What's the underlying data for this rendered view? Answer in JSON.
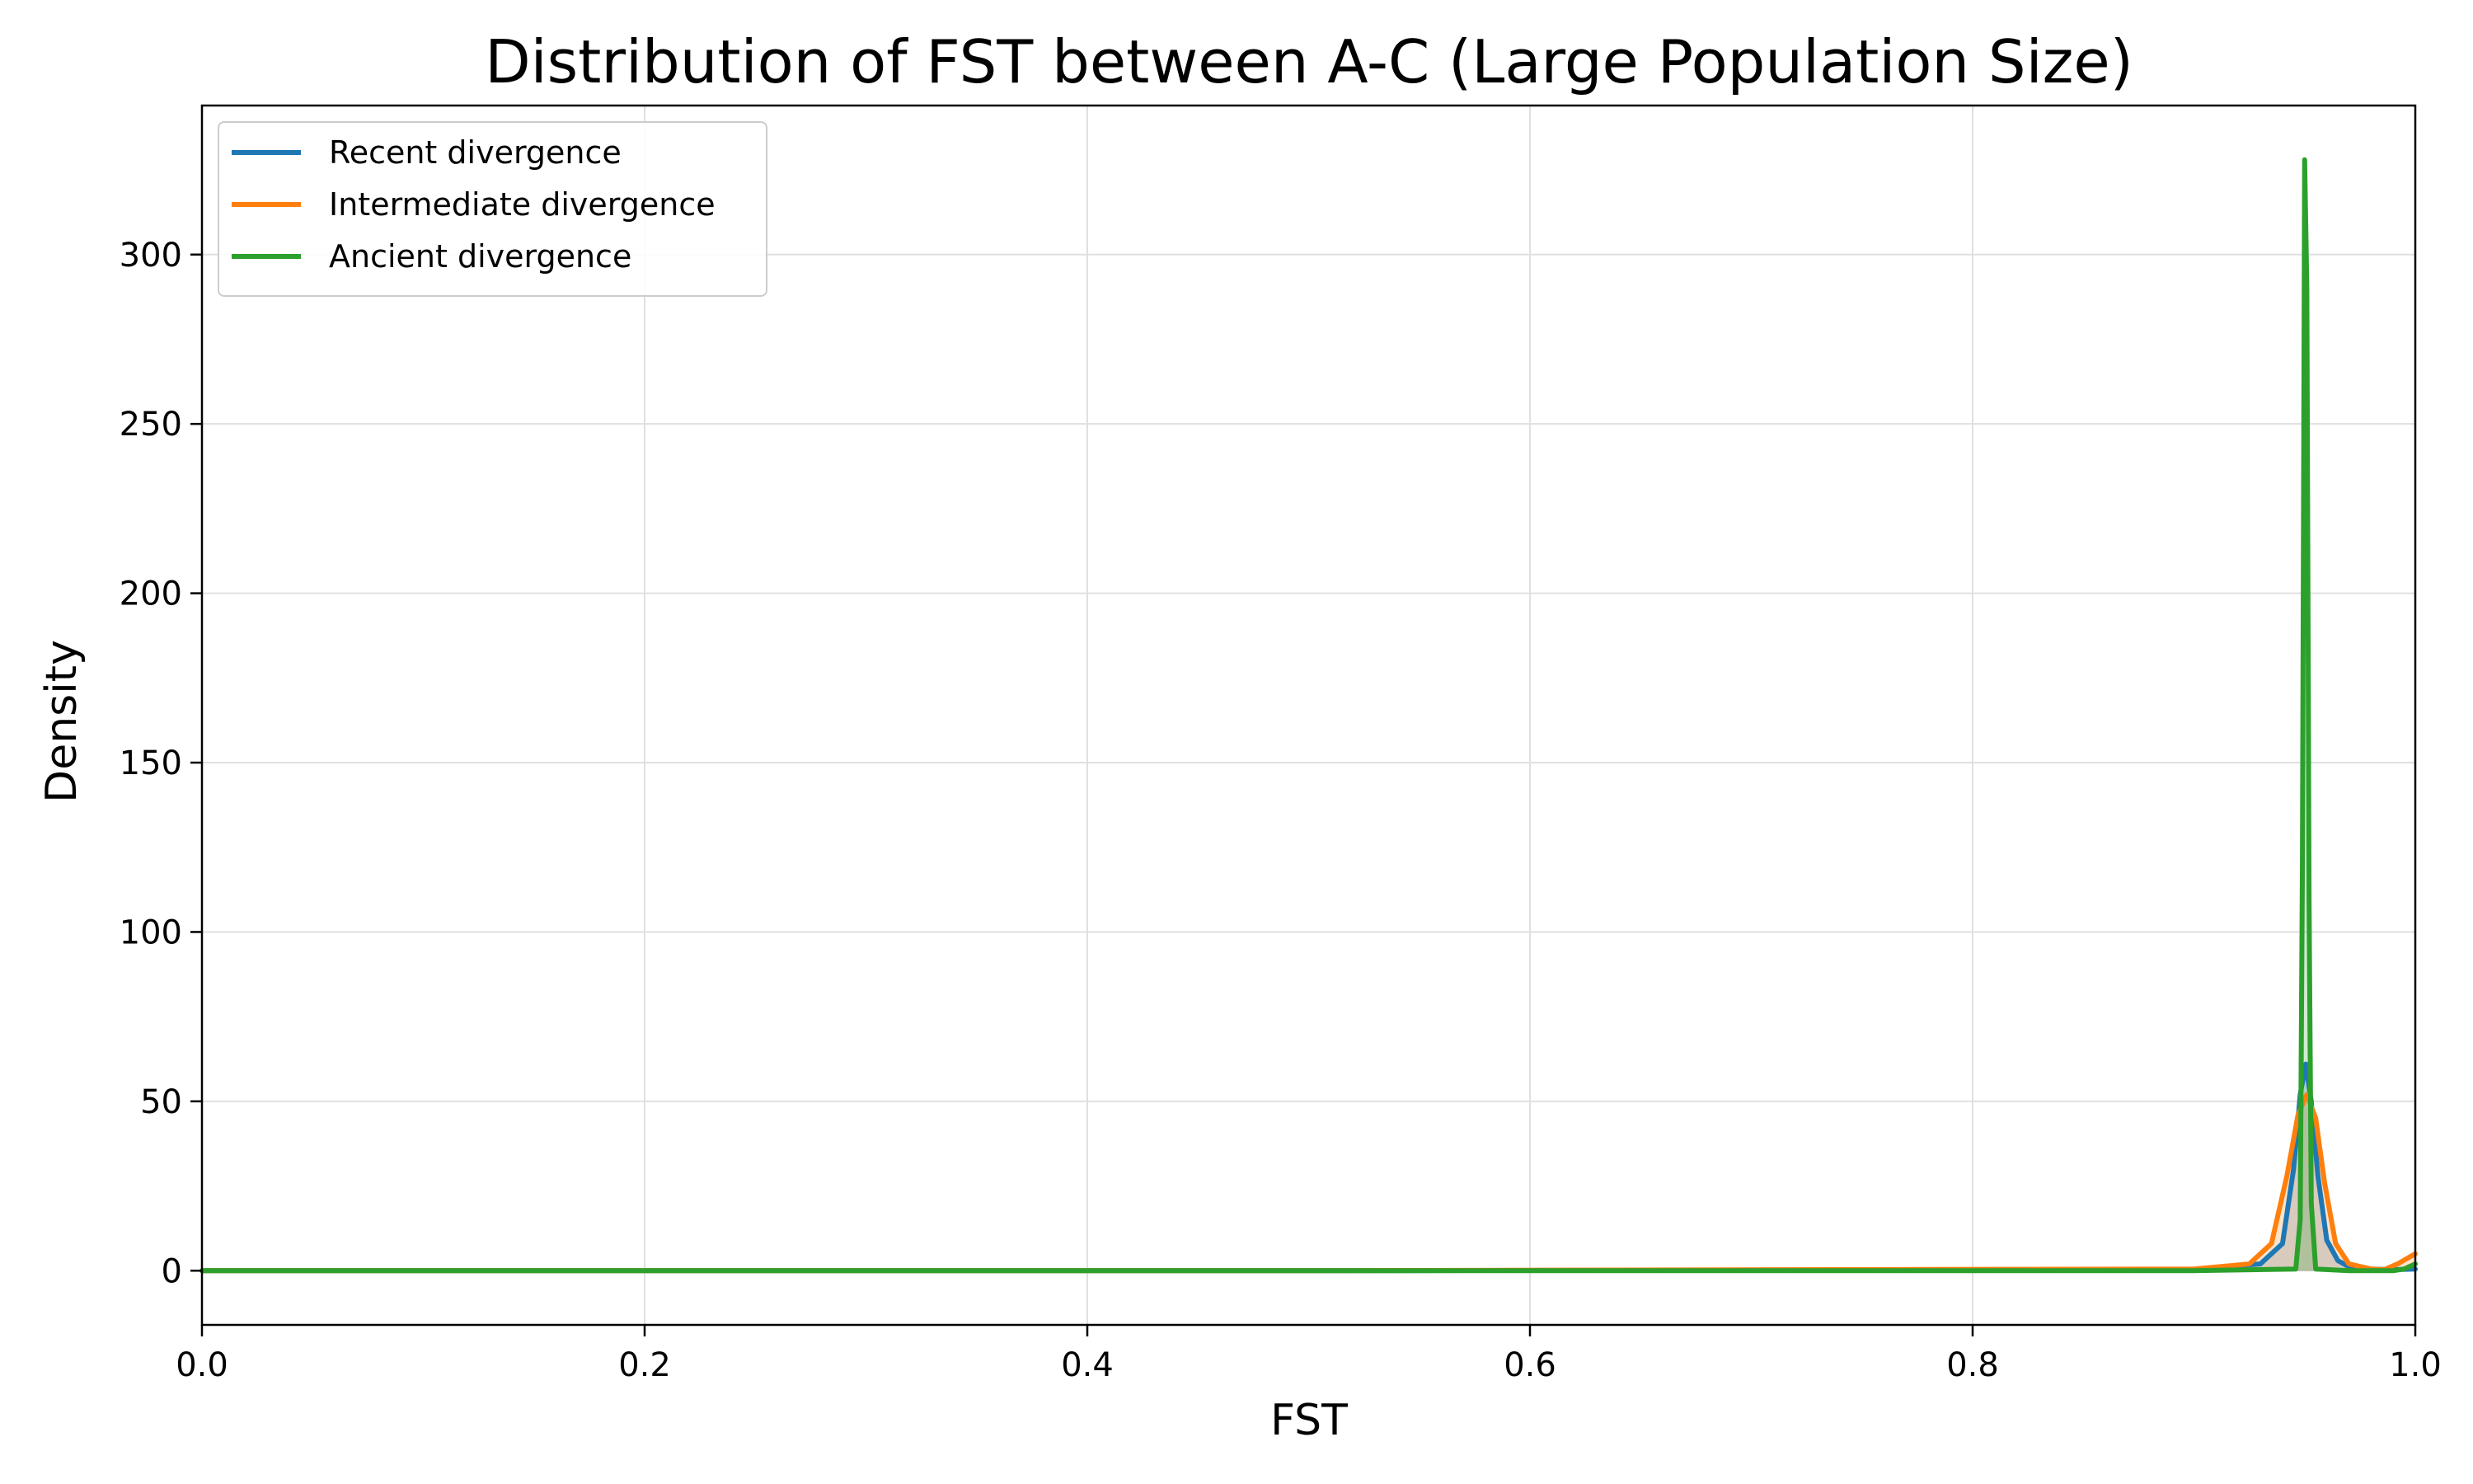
{
  "chart_data": {
    "type": "line",
    "title": "Distribution of FST between A-C (Large Population Size)",
    "xlabel": "FST",
    "ylabel": "Density",
    "xlim": [
      0.0,
      1.0
    ],
    "ylim": [
      -16,
      344
    ],
    "xticks": [
      0.0,
      0.2,
      0.4,
      0.6,
      0.8,
      1.0
    ],
    "xtick_labels": [
      "0.0",
      "0.2",
      "0.4",
      "0.6",
      "0.8",
      "1.0"
    ],
    "yticks": [
      0,
      50,
      100,
      150,
      200,
      250,
      300
    ],
    "ytick_labels": [
      "0",
      "50",
      "100",
      "150",
      "200",
      "250",
      "300"
    ],
    "grid": true,
    "legend_position": "top-left",
    "series": [
      {
        "name": "Recent divergence",
        "color": "#1f77b4",
        "fill": true,
        "x": [
          0.0,
          0.5,
          0.9,
          0.93,
          0.94,
          0.945,
          0.948,
          0.9505,
          0.953,
          0.956,
          0.96,
          0.965,
          0.97,
          0.98,
          0.99,
          1.0
        ],
        "y": [
          0,
          0,
          0.3,
          2,
          8,
          30,
          52,
          61,
          50,
          28,
          9,
          3,
          1.2,
          0.5,
          0.3,
          0.5
        ]
      },
      {
        "name": "Intermediate divergence",
        "color": "#ff7f0e",
        "fill": true,
        "x": [
          0.0,
          0.5,
          0.9,
          0.925,
          0.935,
          0.942,
          0.947,
          0.951,
          0.955,
          0.959,
          0.964,
          0.97,
          0.98,
          0.986,
          0.992,
          1.0
        ],
        "y": [
          0,
          0,
          0.5,
          2,
          8,
          28,
          46,
          52,
          45,
          26,
          8,
          2,
          0.5,
          0.3,
          2,
          5
        ]
      },
      {
        "name": "Ancient divergence",
        "color": "#2ca02c",
        "fill": true,
        "x": [
          0.0,
          0.5,
          0.9,
          0.946,
          0.948,
          0.949,
          0.95,
          0.951,
          0.952,
          0.953,
          0.955,
          0.97,
          0.99,
          0.995,
          1.0
        ],
        "y": [
          0,
          0,
          0,
          0.5,
          15,
          120,
          328,
          290,
          110,
          20,
          0.5,
          0,
          0,
          0.5,
          2
        ]
      }
    ]
  }
}
